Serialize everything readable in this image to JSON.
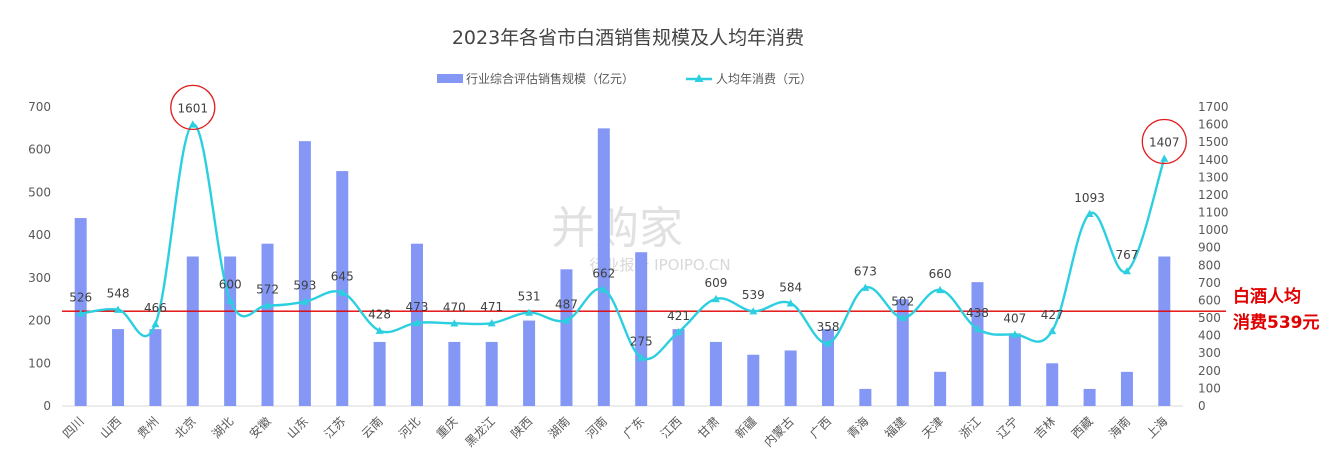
{
  "chart_data": {
    "type": "bar",
    "title": "2023年各省市白酒销售规模及人均年消费",
    "categories": [
      "四川",
      "山西",
      "贵州",
      "北京",
      "湖北",
      "安徽",
      "山东",
      "江苏",
      "云南",
      "河北",
      "重庆",
      "黑龙江",
      "陕西",
      "湖南",
      "河南",
      "广东",
      "江西",
      "甘肃",
      "新疆",
      "内蒙古",
      "广西",
      "青海",
      "福建",
      "天津",
      "浙江",
      "辽宁",
      "吉林",
      "西藏",
      "海南",
      "上海"
    ],
    "series": [
      {
        "name": "行业综合评估销售规模（亿元）",
        "type": "bar",
        "axis": "left",
        "color": "#8497f5",
        "values": [
          440,
          180,
          180,
          350,
          350,
          380,
          620,
          550,
          150,
          380,
          150,
          150,
          200,
          320,
          650,
          360,
          180,
          150,
          120,
          130,
          180,
          40,
          250,
          80,
          290,
          170,
          100,
          40,
          80,
          350
        ]
      },
      {
        "name": "人均年消费（元）",
        "type": "line",
        "axis": "right",
        "color": "#2ccfe0",
        "marker": "triangle",
        "values": [
          526,
          548,
          466,
          1601,
          600,
          572,
          593,
          645,
          428,
          473,
          470,
          471,
          531,
          487,
          662,
          275,
          421,
          609,
          539,
          584,
          358,
          673,
          502,
          660,
          438,
          407,
          427,
          1093,
          767,
          1407
        ]
      }
    ],
    "y_left": {
      "min": 0,
      "max": 700,
      "step": 100,
      "ticks": [
        "0",
        "100",
        "200",
        "300",
        "400",
        "500",
        "600",
        "700"
      ]
    },
    "y_right": {
      "min": 0,
      "max": 1700,
      "step": 100,
      "ticks": [
        "0",
        "100",
        "200",
        "300",
        "400",
        "500",
        "600",
        "700",
        "800",
        "900",
        "1000",
        "1100",
        "1200",
        "1300",
        "1400",
        "1500",
        "1600",
        "1700"
      ]
    },
    "reference_line": {
      "axis": "right",
      "value": 539,
      "color": "#e00000",
      "label_lines": [
        "白酒人均",
        "消费539元"
      ]
    },
    "highlights": [
      "北京",
      "上海"
    ],
    "grid": false,
    "legend_position": "top-center",
    "watermark": {
      "brand": "并购家",
      "sub": "行业报告 IPOIPO.CN"
    }
  }
}
